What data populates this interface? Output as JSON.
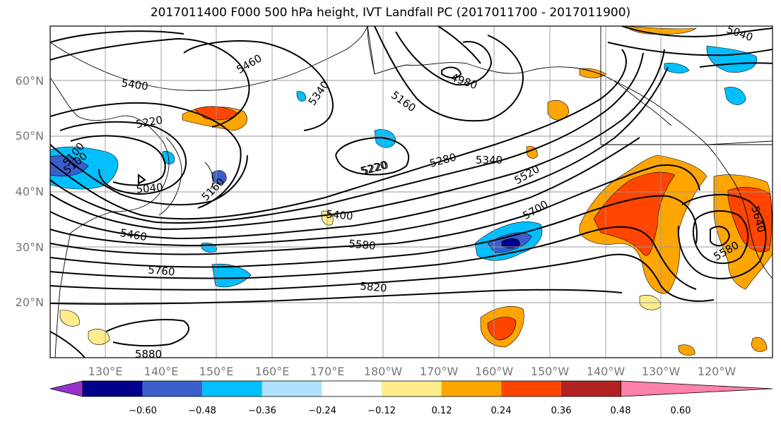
{
  "title": "2017011400 F000 500 hPa height, IVT Landfall PC (2017011700 - 2017011900)",
  "lat_labels": [
    "60°N",
    "50°N",
    "40°N",
    "30°N",
    "20°N"
  ],
  "lon_labels": [
    "130°E",
    "140°E",
    "150°E",
    "160°E",
    "170°E",
    "180°W",
    "170°W",
    "160°W",
    "150°W",
    "140°W",
    "130°W",
    "120°W"
  ],
  "contour_labels": [
    "5400",
    "5460",
    "5340",
    "5100",
    "4980",
    "5160",
    "5040",
    "5220",
    "5220",
    "5100",
    "5040",
    "5160",
    "5220",
    "5280",
    "5340",
    "5520",
    "5400",
    "5460",
    "5580",
    "5700",
    "5760",
    "5820",
    "5880",
    "5640",
    "5580"
  ],
  "colorbar": {
    "ticks": [
      "−0.60",
      "−0.48",
      "−0.36",
      "−0.24",
      "−0.12",
      "0.12",
      "0.24",
      "0.36",
      "0.48",
      "0.60"
    ],
    "colors": [
      "#9932CC",
      "#00008B",
      "#3A5FCD",
      "#00BFFF",
      "#B0E2FF",
      "#FFFFFF",
      "#FFEC8B",
      "#FFA500",
      "#FF4500",
      "#B22222",
      "#FF82AB"
    ]
  }
}
